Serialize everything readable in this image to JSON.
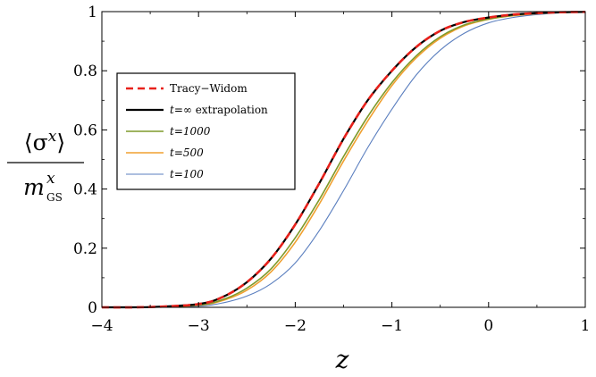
{
  "chart_data": {
    "type": "line",
    "xlabel": "z",
    "ylabel": {
      "numerator": "⟨σ",
      "numerator_sup": "x",
      "numerator_close": "⟩",
      "denominator": "m",
      "denominator_sup": "x",
      "denominator_sub": "GS"
    },
    "xlim": [
      -4,
      1
    ],
    "ylim": [
      0,
      1
    ],
    "xticks": [
      -4,
      -3,
      -2,
      -1,
      0,
      1
    ],
    "xtick_labels": [
      "−4",
      "−3",
      "−2",
      "−1",
      "0",
      "1"
    ],
    "yticks": [
      0,
      0.2,
      0.4,
      0.6,
      0.8,
      1
    ],
    "ytick_labels": [
      "0",
      "0.2",
      "0.4",
      "0.6",
      "0.8",
      "1"
    ],
    "grid": false,
    "legend_position": "upper-left",
    "x": [
      -4.0,
      -3.5,
      -3.0,
      -2.75,
      -2.5,
      -2.25,
      -2.0,
      -1.75,
      -1.5,
      -1.25,
      -1.0,
      -0.75,
      -0.5,
      -0.25,
      0.0,
      0.25,
      0.5,
      0.75,
      1.0
    ],
    "series": [
      {
        "name": "Tracy−Widom",
        "name_italic": "",
        "color": "#e8211b",
        "dash": "8,5",
        "width": 2.6,
        "values": [
          0.0,
          0.001,
          0.011,
          0.035,
          0.085,
          0.165,
          0.28,
          0.42,
          0.57,
          0.7,
          0.8,
          0.88,
          0.935,
          0.965,
          0.98,
          0.99,
          0.995,
          0.998,
          0.999
        ]
      },
      {
        "name": " extrapolation",
        "name_italic": "t=∞",
        "color": "#000000",
        "dash": "",
        "width": 2.2,
        "values": [
          0.0,
          0.001,
          0.011,
          0.035,
          0.085,
          0.165,
          0.28,
          0.42,
          0.57,
          0.7,
          0.8,
          0.88,
          0.935,
          0.965,
          0.98,
          0.99,
          0.995,
          0.998,
          0.999
        ]
      },
      {
        "name": "",
        "name_italic": "t=1000",
        "color": "#7f9a2b",
        "dash": "",
        "width": 1.6,
        "values": [
          0.0,
          0.001,
          0.008,
          0.026,
          0.065,
          0.13,
          0.235,
          0.365,
          0.51,
          0.645,
          0.76,
          0.85,
          0.915,
          0.955,
          0.975,
          0.987,
          0.994,
          0.997,
          0.999
        ]
      },
      {
        "name": "",
        "name_italic": "t=500",
        "color": "#f0a030",
        "dash": "",
        "width": 1.6,
        "values": [
          0.0,
          0.0009,
          0.007,
          0.023,
          0.058,
          0.12,
          0.22,
          0.35,
          0.495,
          0.63,
          0.75,
          0.843,
          0.91,
          0.952,
          0.974,
          0.986,
          0.993,
          0.997,
          0.999
        ]
      },
      {
        "name": "",
        "name_italic": "t=100",
        "color": "#5b7fbf",
        "dash": "",
        "width": 1.1,
        "values": [
          0.0,
          0.0005,
          0.004,
          0.015,
          0.038,
          0.08,
          0.15,
          0.26,
          0.395,
          0.54,
          0.67,
          0.785,
          0.87,
          0.927,
          0.962,
          0.98,
          0.99,
          0.996,
          0.998
        ]
      }
    ]
  }
}
